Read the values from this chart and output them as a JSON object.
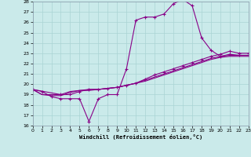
{
  "xlabel": "Windchill (Refroidissement éolien,°C)",
  "xlim": [
    0,
    23
  ],
  "ylim": [
    16,
    28
  ],
  "xticks": [
    0,
    1,
    2,
    3,
    4,
    5,
    6,
    7,
    8,
    9,
    10,
    11,
    12,
    13,
    14,
    15,
    16,
    17,
    18,
    19,
    20,
    21,
    22,
    23
  ],
  "yticks": [
    16,
    17,
    18,
    19,
    20,
    21,
    22,
    23,
    24,
    25,
    26,
    27,
    28
  ],
  "background_color": "#caeaea",
  "grid_color": "#aad4d4",
  "line_color": "#880088",
  "series1_x": [
    0,
    1,
    2,
    3,
    4,
    5,
    6,
    7,
    8,
    9,
    10,
    11,
    12,
    13,
    14,
    15,
    16,
    17,
    18,
    19,
    20,
    21,
    22,
    23
  ],
  "series1_y": [
    19.5,
    19.3,
    18.8,
    18.6,
    18.6,
    18.6,
    16.4,
    18.6,
    19.0,
    19.0,
    21.5,
    26.2,
    26.5,
    26.5,
    26.8,
    27.8,
    28.2,
    27.6,
    24.5,
    23.3,
    22.7,
    22.9,
    22.8,
    22.8
  ],
  "series2_x": [
    0,
    3,
    4,
    5,
    6,
    7,
    8,
    9,
    10,
    11,
    12,
    13,
    14,
    15,
    16,
    17,
    18,
    19,
    20,
    21,
    22,
    23
  ],
  "series2_y": [
    19.5,
    19.0,
    19.0,
    19.3,
    19.5,
    19.5,
    19.6,
    19.7,
    19.9,
    20.1,
    20.5,
    20.9,
    21.2,
    21.5,
    21.8,
    22.1,
    22.4,
    22.7,
    22.9,
    23.2,
    23.0,
    23.0
  ],
  "series3_x": [
    0,
    1,
    2,
    3,
    4,
    5,
    6,
    7,
    8,
    9,
    10,
    11,
    12,
    13,
    14,
    15,
    16,
    17,
    18,
    19,
    20,
    21,
    22,
    23
  ],
  "series3_y": [
    19.5,
    19.0,
    19.0,
    19.0,
    19.3,
    19.4,
    19.5,
    19.5,
    19.6,
    19.7,
    19.9,
    20.1,
    20.4,
    20.7,
    21.0,
    21.3,
    21.6,
    21.9,
    22.2,
    22.5,
    22.7,
    22.8,
    22.8,
    22.8
  ],
  "series4_x": [
    0,
    1,
    2,
    3,
    4,
    5,
    6,
    7,
    8,
    9,
    10,
    11,
    12,
    13,
    14,
    15,
    16,
    17,
    18,
    19,
    20,
    21,
    22,
    23
  ],
  "series4_y": [
    19.5,
    19.0,
    18.9,
    18.9,
    19.2,
    19.4,
    19.4,
    19.5,
    19.6,
    19.7,
    19.9,
    20.1,
    20.3,
    20.6,
    20.9,
    21.2,
    21.5,
    21.8,
    22.1,
    22.4,
    22.6,
    22.7,
    22.7,
    22.7
  ]
}
